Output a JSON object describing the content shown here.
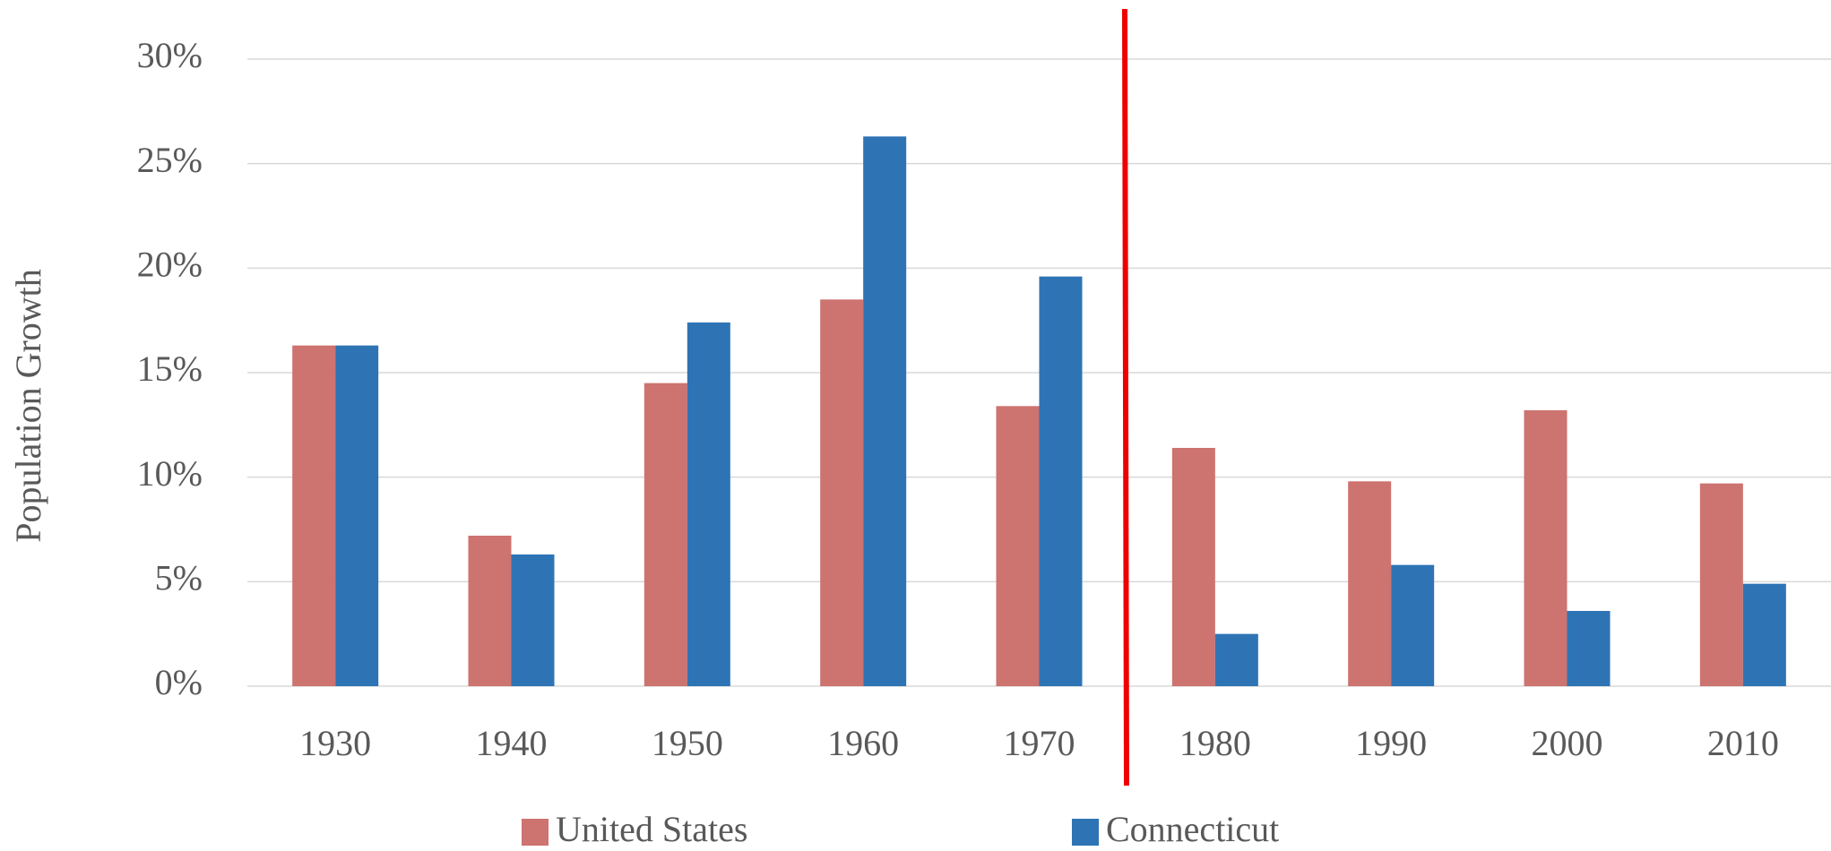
{
  "chart_data": {
    "type": "bar",
    "y_label": "Population Growth",
    "categories": [
      "1930",
      "1940",
      "1950",
      "1960",
      "1970",
      "1980",
      "1990",
      "2000",
      "2010"
    ],
    "series": [
      {
        "name": "United States",
        "color": "#cd7370",
        "values": [
          16.3,
          7.2,
          14.5,
          18.5,
          13.4,
          11.4,
          9.8,
          13.2,
          9.7
        ]
      },
      {
        "name": "Connecticut",
        "color": "#2e74b5",
        "values": [
          16.3,
          6.3,
          17.4,
          26.3,
          19.6,
          2.5,
          5.8,
          3.6,
          4.9
        ]
      }
    ],
    "ylim": [
      0,
      30
    ],
    "yticks": [
      {
        "value": 0,
        "label": "0%"
      },
      {
        "value": 5,
        "label": "5%"
      },
      {
        "value": 10,
        "label": "10%"
      },
      {
        "value": 15,
        "label": "15%"
      },
      {
        "value": 20,
        "label": "20%"
      },
      {
        "value": 25,
        "label": "25%"
      },
      {
        "value": 30,
        "label": "30%"
      }
    ],
    "grid": true,
    "legend": "bottom"
  }
}
